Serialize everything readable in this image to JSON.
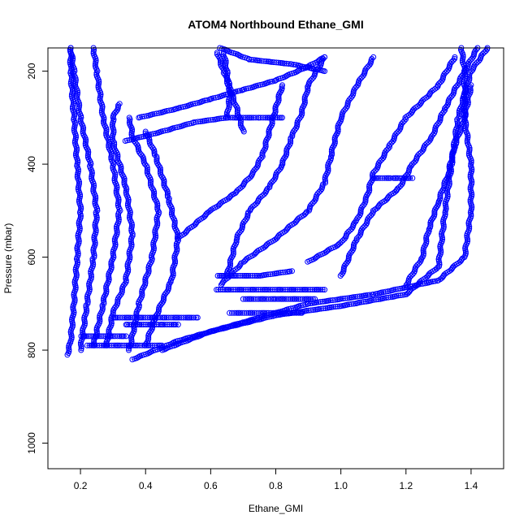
{
  "chart_data": {
    "type": "scatter",
    "title": "ATOM4 Northbound Ethane_GMI",
    "xlabel": "Ethane_GMI",
    "ylabel": "Pressure (mbar)",
    "xlim": [
      0.1,
      1.5
    ],
    "ylim": [
      1055,
      150
    ],
    "y_reversed": true,
    "x_ticks": [
      0.2,
      0.4,
      0.6,
      0.8,
      1.0,
      1.2,
      1.4
    ],
    "x_tick_labels": [
      "0.2",
      "0.4",
      "0.6",
      "0.8",
      "1.0",
      "1.2",
      "1.4"
    ],
    "y_ticks": [
      200,
      400,
      600,
      800,
      1000
    ],
    "y_tick_labels": [
      "200",
      "400",
      "600",
      "800",
      "1000"
    ],
    "marker": "open-circle",
    "connect_points": true,
    "color": "#0000ff",
    "grid": false,
    "series": [
      {
        "points": [
          [
            0.16,
            810
          ],
          [
            0.17,
            780
          ],
          [
            0.18,
            700
          ],
          [
            0.19,
            600
          ],
          [
            0.2,
            500
          ],
          [
            0.19,
            400
          ],
          [
            0.18,
            300
          ],
          [
            0.17,
            200
          ],
          [
            0.17,
            150
          ]
        ]
      },
      {
        "points": [
          [
            0.2,
            800
          ],
          [
            0.22,
            700
          ],
          [
            0.24,
            600
          ],
          [
            0.25,
            500
          ],
          [
            0.23,
            400
          ],
          [
            0.2,
            300
          ],
          [
            0.18,
            200
          ],
          [
            0.17,
            150
          ]
        ]
      },
      {
        "points": [
          [
            0.24,
            790
          ],
          [
            0.27,
            700
          ],
          [
            0.3,
            600
          ],
          [
            0.32,
            500
          ],
          [
            0.3,
            400
          ],
          [
            0.27,
            300
          ],
          [
            0.25,
            200
          ],
          [
            0.24,
            150
          ]
        ]
      },
      {
        "points": [
          [
            0.28,
            790
          ],
          [
            0.3,
            720
          ],
          [
            0.34,
            650
          ],
          [
            0.36,
            550
          ],
          [
            0.34,
            450
          ],
          [
            0.3,
            350
          ],
          [
            0.3,
            300
          ],
          [
            0.32,
            270
          ]
        ]
      },
      {
        "points": [
          [
            0.35,
            800
          ],
          [
            0.38,
            700
          ],
          [
            0.42,
            600
          ],
          [
            0.44,
            500
          ],
          [
            0.4,
            400
          ],
          [
            0.36,
            340
          ],
          [
            0.35,
            300
          ]
        ]
      },
      {
        "points": [
          [
            0.4,
            790
          ],
          [
            0.43,
            730
          ],
          [
            0.48,
            650
          ],
          [
            0.5,
            560
          ],
          [
            0.47,
            470
          ],
          [
            0.43,
            380
          ],
          [
            0.4,
            330
          ]
        ]
      },
      {
        "points": [
          [
            0.36,
            820
          ],
          [
            0.5,
            780
          ],
          [
            0.7,
            740
          ],
          [
            0.9,
            700
          ],
          [
            1.1,
            680
          ],
          [
            1.3,
            650
          ],
          [
            1.38,
            600
          ],
          [
            1.4,
            500
          ],
          [
            1.4,
            400
          ],
          [
            1.38,
            300
          ],
          [
            1.38,
            200
          ],
          [
            1.37,
            150
          ]
        ]
      },
      {
        "points": [
          [
            0.45,
            800
          ],
          [
            0.6,
            760
          ],
          [
            0.8,
            725
          ],
          [
            1.0,
            705
          ],
          [
            1.2,
            680
          ],
          [
            1.3,
            620
          ],
          [
            1.32,
            500
          ],
          [
            1.34,
            400
          ],
          [
            1.36,
            300
          ],
          [
            1.4,
            200
          ],
          [
            1.45,
            150
          ]
        ]
      },
      {
        "points": [
          [
            0.63,
            660
          ],
          [
            0.7,
            610
          ],
          [
            0.8,
            560
          ],
          [
            0.9,
            500
          ],
          [
            0.95,
            440
          ],
          [
            0.97,
            380
          ],
          [
            1.0,
            300
          ],
          [
            1.05,
            230
          ],
          [
            1.1,
            170
          ]
        ]
      },
      {
        "points": [
          [
            0.65,
            640
          ],
          [
            0.68,
            560
          ],
          [
            0.72,
            500
          ],
          [
            0.78,
            450
          ],
          [
            0.82,
            400
          ],
          [
            0.85,
            340
          ],
          [
            0.88,
            290
          ],
          [
            0.9,
            230
          ],
          [
            0.95,
            170
          ]
        ]
      },
      {
        "points": [
          [
            0.5,
            560
          ],
          [
            0.6,
            500
          ],
          [
            0.68,
            460
          ],
          [
            0.73,
            420
          ],
          [
            0.76,
            380
          ],
          [
            0.78,
            330
          ],
          [
            0.8,
            280
          ],
          [
            0.82,
            230
          ]
        ]
      },
      {
        "points": [
          [
            0.9,
            610
          ],
          [
            1.0,
            570
          ],
          [
            1.05,
            520
          ],
          [
            1.08,
            470
          ],
          [
            1.1,
            420
          ],
          [
            1.15,
            360
          ],
          [
            1.2,
            300
          ],
          [
            1.3,
            230
          ],
          [
            1.35,
            170
          ]
        ]
      },
      {
        "points": [
          [
            1.0,
            640
          ],
          [
            1.05,
            560
          ],
          [
            1.1,
            500
          ],
          [
            1.18,
            450
          ],
          [
            1.22,
            400
          ],
          [
            1.28,
            340
          ],
          [
            1.32,
            280
          ],
          [
            1.38,
            200
          ],
          [
            1.42,
            150
          ]
        ]
      },
      {
        "points": [
          [
            1.2,
            660
          ],
          [
            1.25,
            600
          ],
          [
            1.27,
            540
          ],
          [
            1.3,
            480
          ],
          [
            1.33,
            420
          ],
          [
            1.35,
            360
          ],
          [
            1.38,
            300
          ],
          [
            1.4,
            230
          ]
        ]
      },
      {
        "points": [
          [
            0.7,
            330
          ],
          [
            0.68,
            280
          ],
          [
            0.66,
            240
          ],
          [
            0.64,
            200
          ],
          [
            0.62,
            160
          ]
        ]
      },
      {
        "points": [
          [
            0.65,
            300
          ],
          [
            0.66,
            250
          ],
          [
            0.65,
            200
          ],
          [
            0.64,
            160
          ]
        ]
      },
      {
        "points": [
          [
            0.38,
            300
          ],
          [
            0.5,
            280
          ],
          [
            0.6,
            260
          ],
          [
            0.7,
            240
          ],
          [
            0.8,
            220
          ],
          [
            0.9,
            190
          ],
          [
            0.95,
            170
          ]
        ]
      },
      {
        "points": [
          [
            0.34,
            350
          ],
          [
            0.45,
            330
          ],
          [
            0.55,
            310
          ],
          [
            0.65,
            300
          ],
          [
            0.75,
            300
          ],
          [
            0.82,
            300
          ]
        ]
      },
      {
        "points": [
          [
            0.63,
            150
          ],
          [
            0.72,
            175
          ],
          [
            0.85,
            185
          ],
          [
            0.95,
            200
          ]
        ]
      },
      {
        "points": [
          [
            0.22,
            790
          ],
          [
            0.35,
            790
          ],
          [
            0.45,
            790
          ]
        ]
      },
      {
        "points": [
          [
            0.2,
            770
          ],
          [
            0.28,
            770
          ],
          [
            0.34,
            770
          ]
        ]
      },
      {
        "points": [
          [
            0.3,
            730
          ],
          [
            0.45,
            730
          ],
          [
            0.56,
            730
          ]
        ]
      },
      {
        "points": [
          [
            0.34,
            745
          ],
          [
            0.45,
            745
          ],
          [
            0.5,
            745
          ]
        ]
      },
      {
        "points": [
          [
            0.62,
            670
          ],
          [
            0.78,
            670
          ],
          [
            0.95,
            670
          ]
        ]
      },
      {
        "points": [
          [
            0.66,
            720
          ],
          [
            0.78,
            720
          ],
          [
            0.88,
            720
          ]
        ]
      },
      {
        "points": [
          [
            0.7,
            690
          ],
          [
            0.8,
            690
          ],
          [
            0.92,
            690
          ]
        ]
      },
      {
        "points": [
          [
            0.62,
            640
          ],
          [
            0.75,
            640
          ],
          [
            0.85,
            630
          ]
        ]
      },
      {
        "points": [
          [
            1.1,
            430
          ],
          [
            1.16,
            430
          ],
          [
            1.22,
            430
          ]
        ]
      }
    ]
  }
}
